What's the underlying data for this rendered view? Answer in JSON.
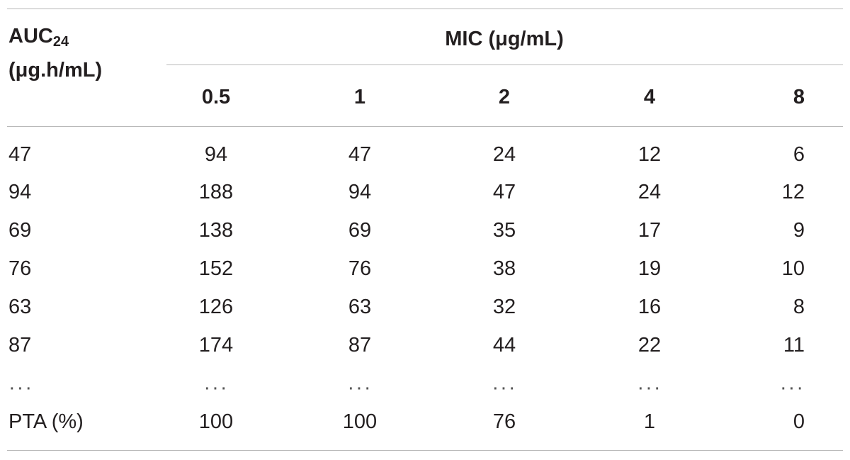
{
  "table": {
    "rowhead": {
      "line1_main": "AUC",
      "line1_sub": "24",
      "line2": "(μg.h/mL)"
    },
    "spanning_header": "MIC (μg/mL)",
    "columns": [
      "0.5",
      "1",
      "2",
      "4",
      "8"
    ],
    "rows": [
      {
        "label": "47",
        "cells": [
          "94",
          "47",
          "24",
          "12",
          "6"
        ]
      },
      {
        "label": "94",
        "cells": [
          "188",
          "94",
          "47",
          "24",
          "12"
        ]
      },
      {
        "label": "69",
        "cells": [
          "138",
          "69",
          "35",
          "17",
          "9"
        ]
      },
      {
        "label": "76",
        "cells": [
          "152",
          "76",
          "38",
          "19",
          "10"
        ]
      },
      {
        "label": "63",
        "cells": [
          "126",
          "63",
          "32",
          "16",
          "8"
        ]
      },
      {
        "label": "87",
        "cells": [
          "174",
          "87",
          "44",
          "22",
          "11"
        ]
      },
      {
        "label": "...",
        "cells": [
          "...",
          "...",
          "...",
          "...",
          "..."
        ]
      },
      {
        "label": "PTA (%)",
        "cells": [
          "100",
          "100",
          "76",
          "1",
          "0"
        ]
      }
    ]
  }
}
